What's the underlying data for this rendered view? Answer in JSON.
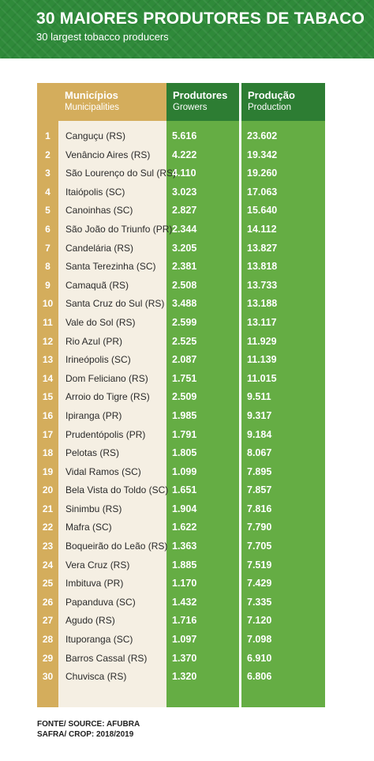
{
  "header": {
    "title": "30 MAIORES PRODUTORES DE TABACO",
    "subtitle": "30 largest tobacco producers"
  },
  "columns": {
    "municipios": "Municípios",
    "municipalities": "Municipalities",
    "produtores": "Produtores",
    "growers": "Growers",
    "producao": "Produção",
    "production": "Production"
  },
  "rows": [
    {
      "n": "1",
      "name": "Canguçu (RS)",
      "growers": "5.616",
      "production": "23.602"
    },
    {
      "n": "2",
      "name": "Venâncio Aires (RS)",
      "growers": "4.222",
      "production": "19.342"
    },
    {
      "n": "3",
      "name": "São Lourenço do Sul (RS)",
      "growers": "4.110",
      "production": "19.260"
    },
    {
      "n": "4",
      "name": "Itaiópolis (SC)",
      "growers": "3.023",
      "production": "17.063"
    },
    {
      "n": "5",
      "name": "Canoinhas (SC)",
      "growers": "2.827",
      "production": "15.640"
    },
    {
      "n": "6",
      "name": "São João do Triunfo (PR)",
      "growers": "2.344",
      "production": "14.112"
    },
    {
      "n": "7",
      "name": "Candelária (RS)",
      "growers": "3.205",
      "production": "13.827"
    },
    {
      "n": "8",
      "name": "Santa Terezinha (SC)",
      "growers": "2.381",
      "production": "13.818"
    },
    {
      "n": "9",
      "name": "Camaquã (RS)",
      "growers": "2.508",
      "production": "13.733"
    },
    {
      "n": "10",
      "name": "Santa Cruz do Sul (RS)",
      "growers": "3.488",
      "production": "13.188"
    },
    {
      "n": "11",
      "name": "Vale do Sol (RS)",
      "growers": "2.599",
      "production": "13.117"
    },
    {
      "n": "12",
      "name": "Rio Azul (PR)",
      "growers": "2.525",
      "production": "11.929"
    },
    {
      "n": "13",
      "name": "Irineópolis (SC)",
      "growers": "2.087",
      "production": "11.139"
    },
    {
      "n": "14",
      "name": "Dom Feliciano (RS)",
      "growers": "1.751",
      "production": "11.015"
    },
    {
      "n": "15",
      "name": "Arroio do Tigre (RS)",
      "growers": "2.509",
      "production": "9.511"
    },
    {
      "n": "16",
      "name": "Ipiranga (PR)",
      "growers": "1.985",
      "production": "9.317"
    },
    {
      "n": "17",
      "name": "Prudentópolis (PR)",
      "growers": "1.791",
      "production": "9.184"
    },
    {
      "n": "18",
      "name": "Pelotas (RS)",
      "growers": "1.805",
      "production": "8.067"
    },
    {
      "n": "19",
      "name": "Vidal Ramos (SC)",
      "growers": "1.099",
      "production": "7.895"
    },
    {
      "n": "20",
      "name": "Bela Vista do Toldo (SC)",
      "growers": "1.651",
      "production": "7.857"
    },
    {
      "n": "21",
      "name": "Sinimbu (RS)",
      "growers": "1.904",
      "production": "7.816"
    },
    {
      "n": "22",
      "name": "Mafra (SC)",
      "growers": "1.622",
      "production": "7.790"
    },
    {
      "n": "23",
      "name": "Boqueirão do Leão (RS)",
      "growers": "1.363",
      "production": "7.705"
    },
    {
      "n": "24",
      "name": "Vera Cruz (RS)",
      "growers": "1.885",
      "production": "7.519"
    },
    {
      "n": "25",
      "name": "Imbituva (PR)",
      "growers": "1.170",
      "production": "7.429"
    },
    {
      "n": "26",
      "name": "Papanduva (SC)",
      "growers": "1.432",
      "production": "7.335"
    },
    {
      "n": "27",
      "name": "Agudo (RS)",
      "growers": "1.716",
      "production": "7.120"
    },
    {
      "n": "28",
      "name": "Ituporanga (SC)",
      "growers": "1.097",
      "production": "7.098"
    },
    {
      "n": "29",
      "name": "Barros Cassal (RS)",
      "growers": "1.370",
      "production": "6.910"
    },
    {
      "n": "30",
      "name": "Chuvisca (RS)",
      "growers": "1.320",
      "production": "6.806"
    }
  ],
  "footer": {
    "source": "FONTE/ SOURCE: AFUBRA",
    "crop": "SAFRA/ CROP: 2018/2019"
  },
  "colors": {
    "header_green": "#2f8a3a",
    "gold": "#d4ad5c",
    "cream": "#f5efe3",
    "green": "#65ad44",
    "dark_green": "#2d7d33"
  }
}
